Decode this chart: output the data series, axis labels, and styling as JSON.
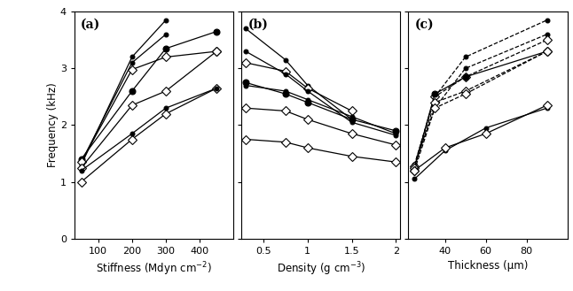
{
  "panels": [
    "(a)",
    "(b)",
    "(c)"
  ],
  "ylabel": "Frequency (kHz)",
  "ylim": [
    0,
    4
  ],
  "yticks": [
    0,
    1,
    2,
    3,
    4
  ],
  "panel_a": {
    "xlim": [
      30,
      500
    ],
    "xticks": [
      100,
      200,
      300,
      400
    ],
    "xticklabels": [
      "100",
      "200",
      "300",
      "400"
    ],
    "xlabel": "Stiffness (Mdyn cm$^{-2}$)",
    "series": [
      {
        "x": [
          50,
          200,
          300
        ],
        "y": [
          1.3,
          3.2,
          3.85
        ],
        "marker": "o",
        "ms": 3.5,
        "ls": "-",
        "mfc": "black"
      },
      {
        "x": [
          50,
          200,
          300
        ],
        "y": [
          1.35,
          3.1,
          3.6
        ],
        "marker": "o",
        "ms": 3.5,
        "ls": "-",
        "mfc": "black"
      },
      {
        "x": [
          50,
          200,
          300,
          450
        ],
        "y": [
          1.4,
          2.6,
          3.35,
          3.65
        ],
        "marker": "o",
        "ms": 5,
        "ls": "-",
        "mfc": "black"
      },
      {
        "x": [
          50,
          200,
          300,
          450
        ],
        "y": [
          1.35,
          2.98,
          3.2,
          3.3
        ],
        "marker": "D",
        "ms": 5,
        "ls": "-",
        "mfc": "white"
      },
      {
        "x": [
          50,
          200,
          300,
          450
        ],
        "y": [
          1.25,
          2.35,
          2.6,
          3.3
        ],
        "marker": "D",
        "ms": 5,
        "ls": "-",
        "mfc": "white"
      },
      {
        "x": [
          50,
          200,
          300,
          450
        ],
        "y": [
          1.0,
          1.75,
          2.2,
          2.65
        ],
        "marker": "D",
        "ms": 5,
        "ls": "-",
        "mfc": "white"
      },
      {
        "x": [
          50,
          200,
          300,
          450
        ],
        "y": [
          1.2,
          1.85,
          2.3,
          2.65
        ],
        "marker": "o",
        "ms": 3.5,
        "ls": "-",
        "mfc": "black"
      }
    ]
  },
  "panel_b": {
    "xlim": [
      0.25,
      2.05
    ],
    "xticks": [
      0.5,
      1.0,
      1.5,
      2.0
    ],
    "xticklabels": [
      "0.5",
      "1",
      "1.5",
      "2"
    ],
    "xlabel": "Density (g cm$^{-3}$)",
    "series": [
      {
        "x": [
          0.3,
          0.75,
          1.0,
          1.5
        ],
        "y": [
          3.7,
          3.15,
          2.7,
          2.1
        ],
        "marker": "o",
        "ms": 3.5,
        "ls": "-",
        "mfc": "black"
      },
      {
        "x": [
          0.3,
          0.75,
          1.0,
          1.5
        ],
        "y": [
          3.1,
          2.95,
          2.65,
          2.25
        ],
        "marker": "D",
        "ms": 5,
        "ls": "-",
        "mfc": "white"
      },
      {
        "x": [
          0.3,
          0.75,
          1.0,
          1.5,
          2.0
        ],
        "y": [
          2.75,
          2.55,
          2.4,
          2.1,
          1.9
        ],
        "marker": "o",
        "ms": 5,
        "ls": "-",
        "mfc": "black"
      },
      {
        "x": [
          0.3,
          0.75,
          1.0,
          1.5,
          2.0
        ],
        "y": [
          2.7,
          2.6,
          2.45,
          2.15,
          1.85
        ],
        "marker": "o",
        "ms": 3.5,
        "ls": "-",
        "mfc": "black"
      },
      {
        "x": [
          0.3,
          0.75,
          1.0,
          1.5,
          2.0
        ],
        "y": [
          2.3,
          2.25,
          2.1,
          1.85,
          1.65
        ],
        "marker": "D",
        "ms": 5,
        "ls": "-",
        "mfc": "white"
      },
      {
        "x": [
          0.3,
          0.75,
          1.0,
          1.5,
          2.0
        ],
        "y": [
          1.75,
          1.7,
          1.6,
          1.45,
          1.35
        ],
        "marker": "D",
        "ms": 5,
        "ls": "-",
        "mfc": "white"
      },
      {
        "x": [
          0.3,
          0.75,
          1.0,
          1.5,
          2.0
        ],
        "y": [
          3.3,
          2.9,
          2.6,
          2.05,
          1.82
        ],
        "marker": "o",
        "ms": 3.5,
        "ls": "-",
        "mfc": "black"
      }
    ]
  },
  "panel_c": {
    "xlim": [
      22,
      100
    ],
    "xticks": [
      40,
      60,
      80
    ],
    "xticklabels": [
      "40",
      "60",
      "80"
    ],
    "xlabel": "Thickness (μm)",
    "series": [
      {
        "x": [
          25,
          35,
          50,
          90
        ],
        "y": [
          1.3,
          2.5,
          3.2,
          3.85
        ],
        "marker": "o",
        "ms": 3.5,
        "ls": "--",
        "mfc": "black"
      },
      {
        "x": [
          25,
          35,
          50,
          90
        ],
        "y": [
          1.3,
          2.3,
          3.0,
          3.6
        ],
        "marker": "o",
        "ms": 3.5,
        "ls": "--",
        "mfc": "black"
      },
      {
        "x": [
          25,
          35,
          50,
          90
        ],
        "y": [
          1.28,
          2.5,
          2.85,
          3.5
        ],
        "marker": "D",
        "ms": 5,
        "ls": "--",
        "mfc": "white"
      },
      {
        "x": [
          25,
          35,
          50,
          90
        ],
        "y": [
          1.25,
          2.55,
          2.85,
          3.3
        ],
        "marker": "o",
        "ms": 5,
        "ls": "-",
        "mfc": "black"
      },
      {
        "x": [
          25,
          35,
          50,
          90
        ],
        "y": [
          1.25,
          2.4,
          2.6,
          3.3
        ],
        "marker": "D",
        "ms": 5,
        "ls": "--",
        "mfc": "white"
      },
      {
        "x": [
          25,
          35,
          50,
          90
        ],
        "y": [
          1.2,
          2.3,
          2.55,
          3.3
        ],
        "marker": "D",
        "ms": 5,
        "ls": "--",
        "mfc": "white"
      },
      {
        "x": [
          25,
          40,
          60,
          90
        ],
        "y": [
          1.05,
          1.55,
          1.95,
          2.3
        ],
        "marker": "o",
        "ms": 3.5,
        "ls": "-",
        "mfc": "black"
      },
      {
        "x": [
          25,
          40,
          60,
          90
        ],
        "y": [
          1.2,
          1.6,
          1.85,
          2.35
        ],
        "marker": "D",
        "ms": 5,
        "ls": "-",
        "mfc": "white"
      }
    ]
  }
}
